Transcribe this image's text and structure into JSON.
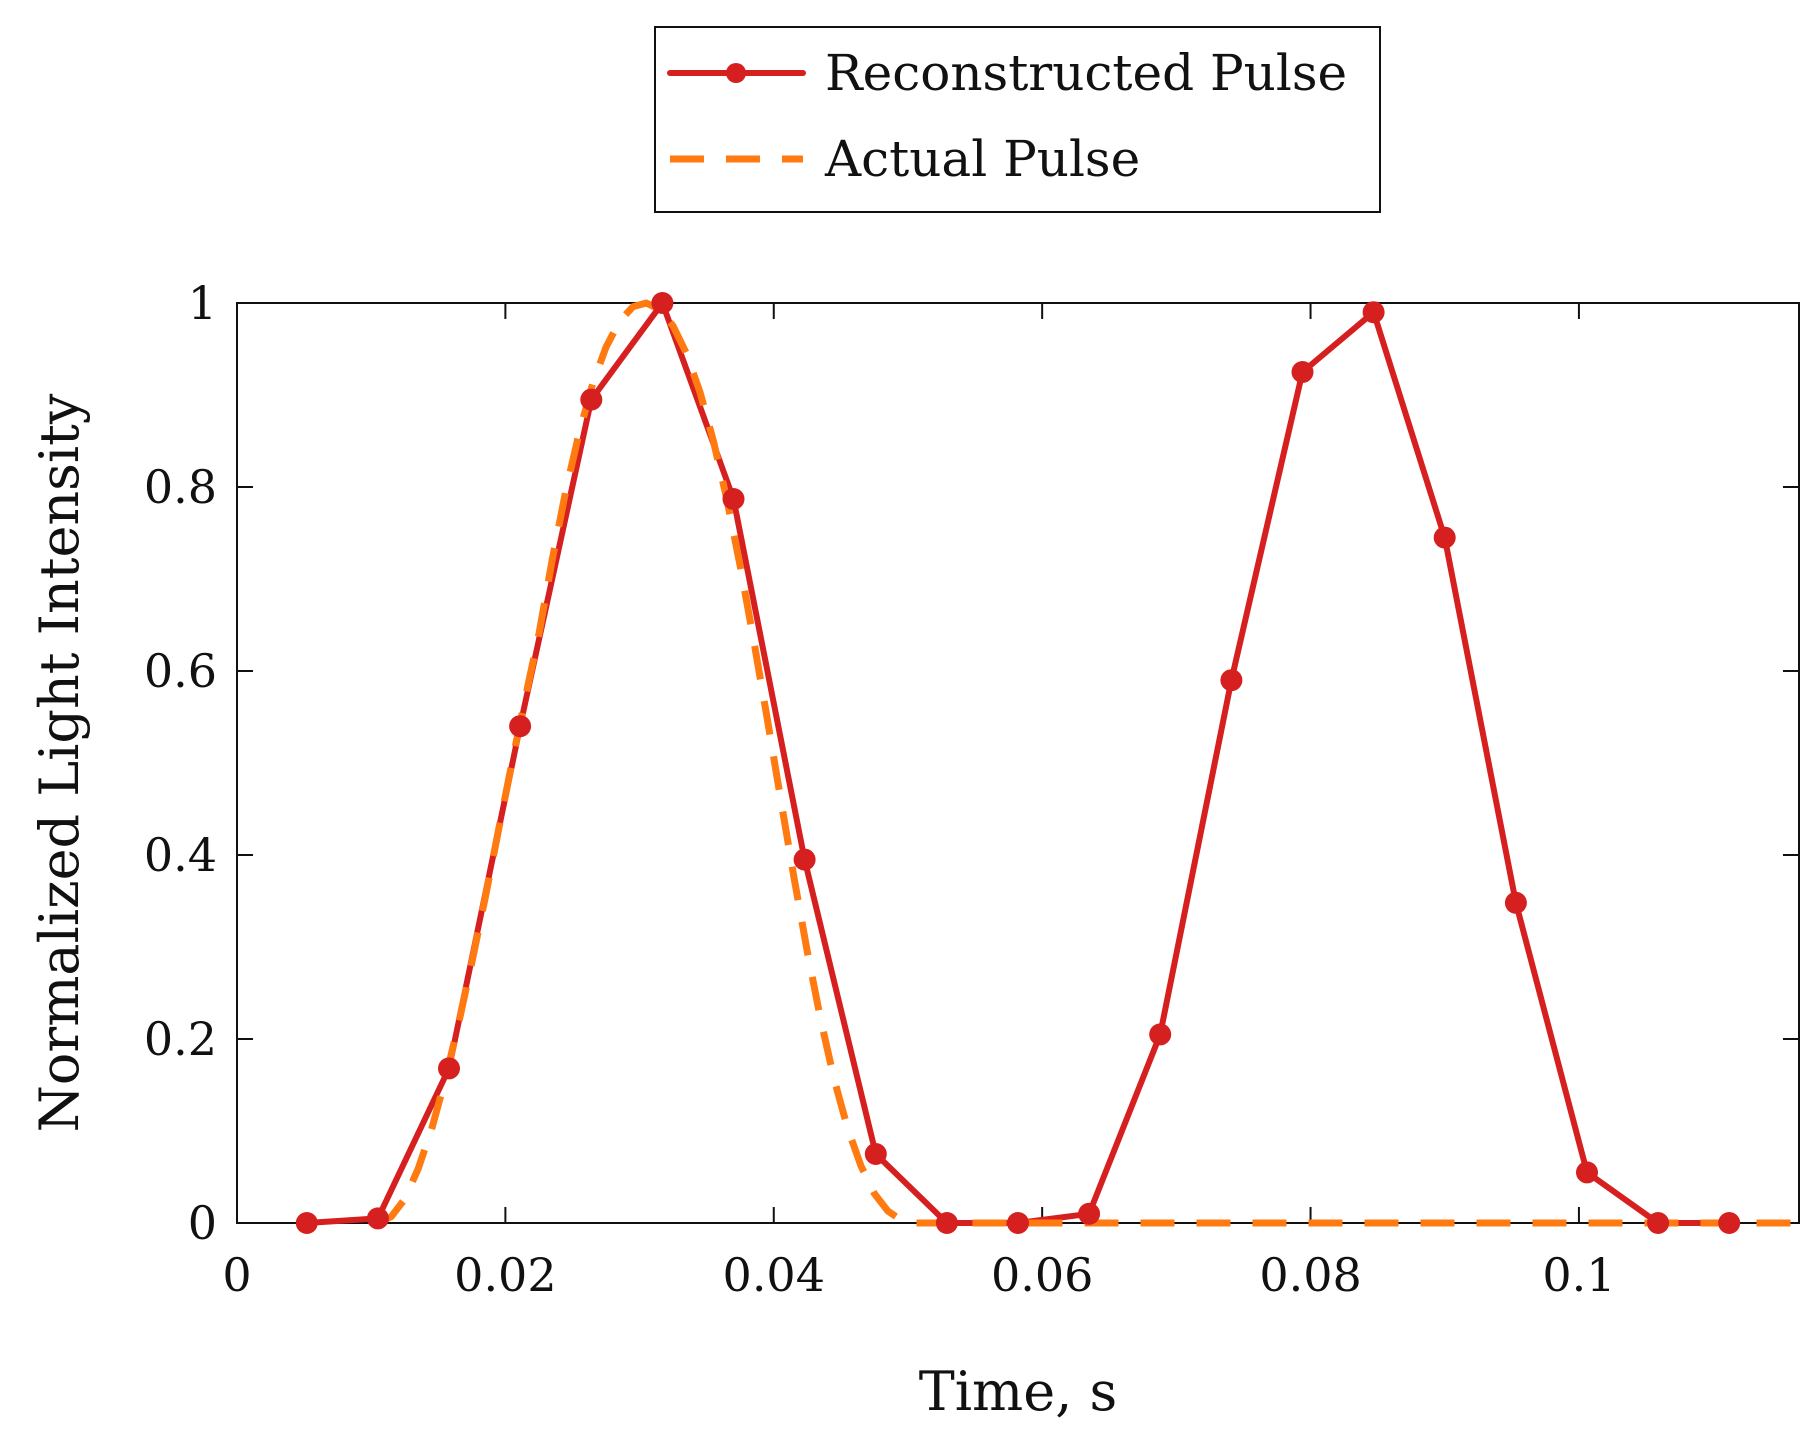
{
  "chart_data": {
    "type": "line",
    "title": "",
    "xlabel": "Time, s",
    "ylabel": "Normalized Light Intensity",
    "xlim": [
      0,
      0.1164
    ],
    "ylim": [
      0,
      1
    ],
    "xticks": [
      0,
      0.02,
      0.04,
      0.06,
      0.08,
      0.1
    ],
    "xtick_labels": [
      "0",
      "0.02",
      "0.04",
      "0.06",
      "0.08",
      "0.1"
    ],
    "yticks": [
      0,
      0.2,
      0.4,
      0.6,
      0.8,
      1
    ],
    "ytick_labels": [
      "0",
      "0.2",
      "0.4",
      "0.6",
      "0.8",
      "1"
    ],
    "grid": false,
    "legend_position": "top-center, outside plot",
    "series": [
      {
        "name": "Reconstructed Pulse",
        "style": "solid-with-markers",
        "color": "#d62020",
        "x": [
          0.0052,
          0.0105,
          0.0158,
          0.0211,
          0.0264,
          0.0317,
          0.037,
          0.0423,
          0.0476,
          0.0529,
          0.0582,
          0.0635,
          0.0688,
          0.0741,
          0.0794,
          0.0847,
          0.09,
          0.0953,
          0.1006,
          0.1059,
          0.1112
        ],
        "y": [
          0.0,
          0.005,
          0.168,
          0.54,
          0.895,
          1.0,
          0.787,
          0.395,
          0.075,
          0.0,
          0.0,
          0.01,
          0.205,
          0.59,
          0.925,
          0.99,
          0.745,
          0.348,
          0.055,
          0.0,
          0.0
        ]
      },
      {
        "name": "Actual Pulse",
        "style": "dashed",
        "color": "#ff7a10",
        "x": [
          0.0105,
          0.0115,
          0.0125,
          0.0135,
          0.0145,
          0.0155,
          0.0165,
          0.0175,
          0.0185,
          0.0195,
          0.0205,
          0.0215,
          0.0225,
          0.0235,
          0.0245,
          0.0255,
          0.0265,
          0.0275,
          0.0285,
          0.0295,
          0.0305,
          0.0315,
          0.0325,
          0.0335,
          0.0345,
          0.0355,
          0.0365,
          0.0375,
          0.0385,
          0.0395,
          0.0405,
          0.0415,
          0.0425,
          0.0435,
          0.0445,
          0.0455,
          0.0465,
          0.0475,
          0.0485,
          0.0495,
          0.0505,
          0.0515,
          0.0525,
          0.06,
          0.07,
          0.08,
          0.09,
          0.1,
          0.11,
          0.1164
        ],
        "y": [
          0.0,
          0.007,
          0.026,
          0.059,
          0.102,
          0.155,
          0.216,
          0.283,
          0.354,
          0.428,
          0.501,
          0.572,
          0.64,
          0.722,
          0.796,
          0.859,
          0.912,
          0.952,
          0.98,
          0.996,
          1.0,
          0.993,
          0.975,
          0.945,
          0.903,
          0.85,
          0.787,
          0.714,
          0.634,
          0.549,
          0.462,
          0.376,
          0.295,
          0.221,
          0.156,
          0.103,
          0.062,
          0.032,
          0.013,
          0.003,
          0.0,
          0.0,
          0.0,
          0.0,
          0.0,
          0.0,
          0.0,
          0.0,
          0.0,
          0.0
        ]
      }
    ]
  }
}
